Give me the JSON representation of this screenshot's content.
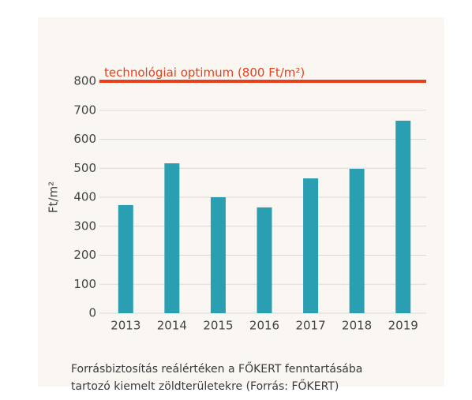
{
  "chart_data": {
    "type": "bar",
    "ylabel": "Ft/m²",
    "categories": [
      "2013",
      "2014",
      "2015",
      "2016",
      "2017",
      "2018",
      "2019"
    ],
    "values": [
      373,
      517,
      400,
      365,
      465,
      498,
      664
    ],
    "color": "#2a9fb2",
    "ylim": [
      0,
      800
    ],
    "yticks": [
      0,
      100,
      200,
      300,
      400,
      500,
      600,
      700,
      800
    ],
    "grid": true,
    "reference_line": {
      "value": 800,
      "label": "technológiai optimum (800 Ft/m²)",
      "color": "#e8401c"
    },
    "caption": [
      "Forrásbiztosítás reálértéken a FŐKERT fenntartásába",
      "tartozó kiemelt zöldterületekre (Forrás: FŐKERT)"
    ]
  }
}
